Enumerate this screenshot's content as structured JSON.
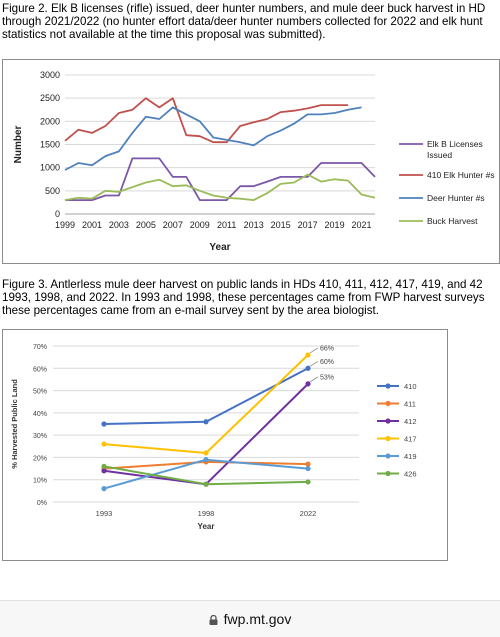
{
  "figure2": {
    "caption_lines": [
      "Figure 2. Elk B licenses (rifle) issued, deer hunter numbers, and mule deer buck harvest in HD",
      "through 2021/2022 (no hunter effort data/deer hunter numbers collected for 2022 and elk hunt",
      "statistics not available at the time this proposal was submitted)."
    ]
  },
  "figure3": {
    "caption_lines": [
      "Figure 3. Antlerless mule deer harvest on public lands in HDs 410, 411, 412, 417, 419, and 42",
      "1993, 1998, and 2022. In 1993 and 1998, these percentages came from FWP harvest surveys",
      "these percentages came from an e-mail survey sent by the area biologist."
    ]
  },
  "browser": {
    "url": "fwp.mt.gov",
    "lock_icon": "lock-icon"
  },
  "chart_data": [
    {
      "type": "line",
      "title": "",
      "xlabel": "Year",
      "ylabel": "Number",
      "ylim": [
        0,
        3000
      ],
      "yticks": [
        0,
        500,
        1000,
        1500,
        2000,
        2500,
        3000
      ],
      "xticks": [
        1999,
        2001,
        2003,
        2005,
        2007,
        2009,
        2011,
        2013,
        2015,
        2017,
        2019,
        2021
      ],
      "x": [
        1999,
        2000,
        2001,
        2002,
        2003,
        2004,
        2005,
        2006,
        2007,
        2008,
        2009,
        2010,
        2011,
        2012,
        2013,
        2014,
        2015,
        2016,
        2017,
        2018,
        2019,
        2020,
        2021,
        2022
      ],
      "legend_position": "right",
      "grid": "horizontal",
      "series": [
        {
          "name": "Elk B Licenses Issued",
          "legend_lines": [
            "Elk B Licenses",
            "Issued"
          ],
          "color": "#7b57a8",
          "values": [
            300,
            300,
            300,
            400,
            400,
            1200,
            1200,
            1200,
            800,
            800,
            300,
            300,
            300,
            600,
            600,
            700,
            800,
            800,
            800,
            1100,
            1100,
            1100,
            1100,
            800
          ]
        },
        {
          "name": "410 Elk Hunter #s",
          "legend_lines": [
            "410 Elk Hunter #s"
          ],
          "color": "#c0504d",
          "values": [
            1580,
            1820,
            1750,
            1900,
            2180,
            2250,
            2500,
            2300,
            2500,
            1700,
            1680,
            1550,
            1550,
            1900,
            1980,
            2050,
            2200,
            2230,
            2280,
            2350,
            2350,
            2350,
            null,
            null
          ]
        },
        {
          "name": "Deer Hunter #s",
          "legend_lines": [
            "Deer Hunter #s"
          ],
          "color": "#4f81bd",
          "values": [
            950,
            1100,
            1050,
            1250,
            1350,
            1750,
            2100,
            2050,
            2300,
            2150,
            2000,
            1650,
            1600,
            1550,
            1480,
            1680,
            1800,
            1950,
            2150,
            2150,
            2180,
            2250,
            2300,
            null
          ]
        },
        {
          "name": "Buck Harvest",
          "legend_lines": [
            "Buck Harvest"
          ],
          "color": "#9bbb59",
          "values": [
            300,
            350,
            330,
            500,
            480,
            580,
            680,
            740,
            600,
            620,
            500,
            400,
            350,
            330,
            300,
            450,
            650,
            680,
            850,
            700,
            750,
            720,
            420,
            350
          ]
        }
      ]
    },
    {
      "type": "line",
      "title": "",
      "xlabel": "Year",
      "ylabel": "% Harvested Public Land",
      "ylim": [
        0,
        70
      ],
      "yticks": [
        "0%",
        "10%",
        "20%",
        "30%",
        "40%",
        "50%",
        "60%",
        "70%"
      ],
      "categories": [
        "1993",
        "1998",
        "2022"
      ],
      "legend_position": "right",
      "grid": "horizontal",
      "annotations": [
        "66%",
        "60%",
        "53%"
      ],
      "series": [
        {
          "name": "410",
          "color": "#4472c4",
          "values": [
            35,
            36,
            60
          ]
        },
        {
          "name": "411",
          "color": "#ed7d31",
          "values": [
            15,
            18,
            17
          ]
        },
        {
          "name": "412",
          "color": "#7030a0",
          "values": [
            14,
            8,
            53
          ]
        },
        {
          "name": "417",
          "color": "#ffc000",
          "values": [
            26,
            22,
            66
          ]
        },
        {
          "name": "419",
          "color": "#5b9bd5",
          "values": [
            6,
            19,
            15
          ]
        },
        {
          "name": "426",
          "color": "#70ad47",
          "values": [
            16,
            8,
            9
          ]
        }
      ]
    }
  ]
}
